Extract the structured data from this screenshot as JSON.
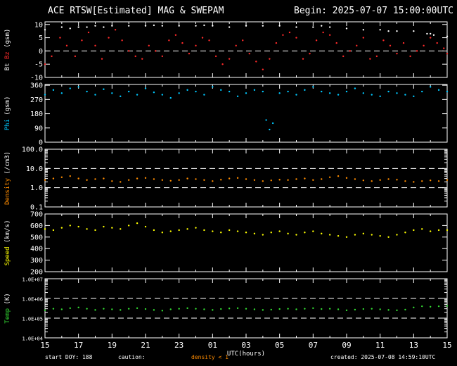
{
  "header": {
    "title": "ACE RTSW[Estimated] MAG & SWEPAM",
    "begin": "Begin: 2025-07-07 15:00:00UTC"
  },
  "footer": {
    "start_doy": "start DOY: 188",
    "caution": "caution:",
    "density_note": "density < 1",
    "created": "created: 2025-07-08 14:59:10UTC"
  },
  "colors": {
    "bt": "#ffffff",
    "bz": "#ff2a2a",
    "phi": "#00c8ff",
    "density": "#ff8c00",
    "speed": "#ffff00",
    "temp": "#33dd33",
    "axes": "#ffffff",
    "background": "#000000"
  },
  "chart_data": {
    "type": "scatter",
    "xlabel": "UTC(hours)",
    "x_ticks": [
      "15",
      "17",
      "19",
      "21",
      "23",
      "01",
      "03",
      "05",
      "07",
      "09",
      "11",
      "13",
      "15"
    ],
    "x_range_hours": [
      0,
      24
    ],
    "panels": [
      {
        "id": "mag",
        "ylabel_parts": [
          {
            "text": "Bt",
            "color": "#ffffff"
          },
          {
            "text": "Bz",
            "color": "#ff2a2a"
          },
          {
            "text": "(gsm)",
            "color": "#ffffff"
          }
        ],
        "ylim": [
          -10,
          11
        ],
        "scale": "linear",
        "ticks": [
          {
            "v": 10,
            "label": "10"
          },
          {
            "v": 5,
            "label": "5"
          },
          {
            "v": 0,
            "label": "0"
          },
          {
            "v": -5,
            "label": "-5"
          },
          {
            "v": -10,
            "label": "-10"
          }
        ],
        "dashed_lines": [
          0
        ],
        "series": [
          {
            "name": "Bt",
            "color": "#ffffff",
            "size": 1.2,
            "x": [
              0,
              1,
              1.5,
              2,
              2.5,
              3,
              3.5,
              4,
              5,
              6,
              6.5,
              7,
              8,
              9,
              9.5,
              10,
              11,
              12,
              13,
              14,
              15,
              16,
              16.5,
              17,
              18,
              19,
              20,
              20.5,
              21,
              22,
              22.8,
              23,
              23.2,
              24
            ],
            "y": [
              8,
              9,
              8.5,
              9,
              9,
              9.5,
              9,
              9.5,
              9.5,
              9.5,
              9.7,
              9.5,
              9.5,
              9.5,
              9.7,
              9.5,
              9,
              9.5,
              9.5,
              9.5,
              9,
              9,
              9.5,
              9,
              8.5,
              8,
              8,
              7.5,
              7.5,
              7.5,
              6.5,
              6.5,
              6,
              5.5
            ]
          },
          {
            "name": "Bz",
            "color": "#ff2a2a",
            "size": 1.2,
            "x": [
              0,
              0.4,
              0.9,
              1.3,
              1.8,
              2.2,
              2.6,
              3,
              3.4,
              3.8,
              4.2,
              4.6,
              5,
              5.4,
              5.8,
              6.2,
              6.6,
              7,
              7.4,
              7.8,
              8.2,
              8.6,
              9,
              9.4,
              9.8,
              10.2,
              10.6,
              11,
              11.4,
              11.8,
              12.2,
              12.6,
              13,
              13.4,
              13.8,
              14.2,
              14.6,
              15,
              15.4,
              15.8,
              16.2,
              16.6,
              17,
              17.4,
              17.8,
              18.2,
              18.6,
              19,
              19.4,
              19.8,
              20.2,
              20.6,
              21,
              21.4,
              21.8,
              22.2,
              22.6,
              23,
              23.4,
              23.8,
              24
            ],
            "y": [
              -5,
              -2,
              5,
              2,
              -2,
              4,
              7,
              2,
              -3,
              5,
              8,
              4,
              0,
              -2,
              -3,
              2,
              0,
              -2,
              4,
              6,
              3,
              -1,
              2,
              5,
              4,
              -2,
              -5,
              -3,
              2,
              4,
              -1,
              -4,
              -7,
              -3,
              3,
              6,
              7,
              5,
              -3,
              -1,
              4,
              7,
              6,
              3,
              -2,
              0,
              2,
              5,
              -3,
              -2,
              4,
              2,
              -1,
              3,
              -2,
              0,
              2,
              5,
              3,
              1,
              -1
            ]
          }
        ]
      },
      {
        "id": "phi",
        "ylabel_parts": [
          {
            "text": "Phi",
            "color": "#00c8ff"
          },
          {
            "text": "(gsm)",
            "color": "#ffffff"
          }
        ],
        "ylim": [
          0,
          365
        ],
        "scale": "linear",
        "ticks": [
          {
            "v": 360,
            "label": "360"
          },
          {
            "v": 270,
            "label": "270"
          },
          {
            "v": 180,
            "label": "180"
          },
          {
            "v": 90,
            "label": "90"
          },
          {
            "v": 0,
            "label": "0"
          }
        ],
        "dashed_lines": [],
        "series": [
          {
            "name": "Phi",
            "color": "#00c8ff",
            "size": 1.2,
            "x": [
              0,
              0.5,
              1,
              1.5,
              2,
              2.5,
              3,
              3.5,
              4,
              4.5,
              5,
              5.5,
              6,
              6.5,
              7,
              7.5,
              8,
              8.5,
              9,
              9.5,
              10,
              10.5,
              11,
              11.5,
              12,
              12.5,
              13,
              13.2,
              13.4,
              13.6,
              14,
              14.5,
              15,
              15.5,
              16,
              16.5,
              17,
              17.5,
              18,
              18.5,
              19,
              19.5,
              20,
              20.5,
              21,
              21.5,
              22,
              22.5,
              23,
              23.5,
              24
            ],
            "y": [
              300,
              330,
              310,
              340,
              350,
              320,
              300,
              335,
              310,
              290,
              320,
              300,
              340,
              315,
              300,
              280,
              310,
              330,
              320,
              300,
              350,
              330,
              320,
              290,
              310,
              330,
              320,
              140,
              80,
              120,
              310,
              320,
              300,
              330,
              350,
              320,
              310,
              300,
              320,
              340,
              310,
              300,
              290,
              320,
              310,
              300,
              290,
              320,
              350,
              330,
              320
            ]
          }
        ]
      },
      {
        "id": "density",
        "ylabel_parts": [
          {
            "text": "Density",
            "color": "#ff8c00"
          },
          {
            "text": "(/cm3)",
            "color": "#ffffff"
          }
        ],
        "ylim": [
          0.1,
          100
        ],
        "scale": "log",
        "ticks": [
          {
            "v": 100,
            "label": "100.0"
          },
          {
            "v": 10,
            "label": "10.0"
          },
          {
            "v": 1,
            "label": "1.0"
          },
          {
            "v": 0.1,
            "label": "0.1"
          }
        ],
        "dashed_lines": [
          10,
          1
        ],
        "series": [
          {
            "name": "Density",
            "color": "#ff8c00",
            "size": 1.2,
            "x": [
              0,
              0.5,
              1,
              1.5,
              2,
              2.5,
              3,
              3.5,
              4,
              4.5,
              5,
              5.5,
              6,
              6.5,
              7,
              7.5,
              8,
              8.5,
              9,
              9.5,
              10,
              10.5,
              11,
              11.5,
              12,
              12.5,
              13,
              13.5,
              14,
              14.5,
              15,
              15.5,
              16,
              16.5,
              17,
              17.5,
              18,
              18.5,
              19,
              19.5,
              20,
              20.5,
              21,
              21.5,
              22,
              22.5,
              23,
              23.5,
              24
            ],
            "y": [
              2.5,
              3,
              3.5,
              4,
              3,
              2.5,
              2.8,
              3,
              2.2,
              2,
              2.5,
              3,
              3.2,
              2.8,
              2.5,
              2.3,
              2.5,
              3,
              2.8,
              2.5,
              2.2,
              2.6,
              3,
              3.2,
              2.8,
              2.5,
              2.2,
              2.4,
              2.6,
              2.5,
              2.8,
              3,
              2.5,
              2.8,
              3.5,
              4,
              3.2,
              2.8,
              2.4,
              2.2,
              2.5,
              2.8,
              2.6,
              2.2,
              2,
              2.2,
              2.4,
              2.2,
              2.5
            ]
          }
        ]
      },
      {
        "id": "speed",
        "ylabel_parts": [
          {
            "text": "Speed",
            "color": "#ffff00"
          },
          {
            "text": "(km/s)",
            "color": "#ffffff"
          }
        ],
        "ylim": [
          200,
          700
        ],
        "scale": "linear",
        "ticks": [
          {
            "v": 700,
            "label": "700"
          },
          {
            "v": 600,
            "label": "600"
          },
          {
            "v": 500,
            "label": "500"
          },
          {
            "v": 400,
            "label": "400"
          },
          {
            "v": 300,
            "label": "300"
          },
          {
            "v": 200,
            "label": "200"
          }
        ],
        "dashed_lines": [],
        "series": [
          {
            "name": "Speed",
            "color": "#ffff00",
            "size": 1.2,
            "x": [
              0,
              0.5,
              1,
              1.5,
              2,
              2.5,
              3,
              3.5,
              4,
              4.5,
              5,
              5.5,
              6,
              6.5,
              7,
              7.5,
              8,
              8.5,
              9,
              9.5,
              10,
              10.5,
              11,
              11.5,
              12,
              12.5,
              13,
              13.5,
              14,
              14.5,
              15,
              15.5,
              16,
              16.5,
              17,
              17.5,
              18,
              18.5,
              19,
              19.5,
              20,
              20.5,
              21,
              21.5,
              22,
              22.5,
              23,
              23.5,
              24
            ],
            "y": [
              570,
              560,
              580,
              600,
              590,
              570,
              560,
              590,
              580,
              570,
              600,
              620,
              590,
              560,
              540,
              550,
              560,
              570,
              580,
              560,
              550,
              540,
              560,
              550,
              540,
              530,
              520,
              540,
              550,
              530,
              520,
              540,
              550,
              530,
              520,
              510,
              500,
              520,
              530,
              520,
              510,
              500,
              520,
              540,
              560,
              570,
              550,
              560,
              560
            ]
          }
        ]
      },
      {
        "id": "temp",
        "ylabel_parts": [
          {
            "text": "Temp",
            "color": "#33dd33"
          },
          {
            "text": "(K)",
            "color": "#ffffff"
          }
        ],
        "ylim": [
          10000,
          10000000
        ],
        "scale": "log",
        "ticks": [
          {
            "v": 10000000,
            "label": "1.0E+07"
          },
          {
            "v": 1000000,
            "label": "1.0E+06"
          },
          {
            "v": 100000,
            "label": "1.0E+05"
          },
          {
            "v": 10000,
            "label": "1.0E+04"
          }
        ],
        "dashed_lines": [
          1000000,
          100000
        ],
        "series": [
          {
            "name": "Temp",
            "color": "#33dd33",
            "size": 1.2,
            "x": [
              0,
              0.5,
              1,
              1.5,
              2,
              2.5,
              3,
              3.5,
              4,
              4.5,
              5,
              5.5,
              6,
              6.5,
              7,
              7.5,
              8,
              8.5,
              9,
              9.5,
              10,
              10.5,
              11,
              11.5,
              12,
              12.5,
              13,
              13.5,
              14,
              14.5,
              15,
              15.5,
              16,
              16.5,
              17,
              17.5,
              18,
              18.5,
              19,
              19.5,
              20,
              20.5,
              21,
              21.5,
              22,
              22.5,
              23,
              23.5,
              24
            ],
            "y": [
              250000,
              300000,
              280000,
              320000,
              350000,
              300000,
              260000,
              300000,
              280000,
              260000,
              300000,
              320000,
              290000,
              260000,
              240000,
              280000,
              300000,
              320000,
              300000,
              280000,
              260000,
              290000,
              310000,
              320000,
              300000,
              280000,
              260000,
              270000,
              290000,
              300000,
              280000,
              300000,
              320000,
              290000,
              300000,
              280000,
              250000,
              270000,
              290000,
              300000,
              280000,
              260000,
              250000,
              270000,
              350000,
              400000,
              380000,
              400000,
              420000
            ]
          }
        ]
      }
    ]
  }
}
